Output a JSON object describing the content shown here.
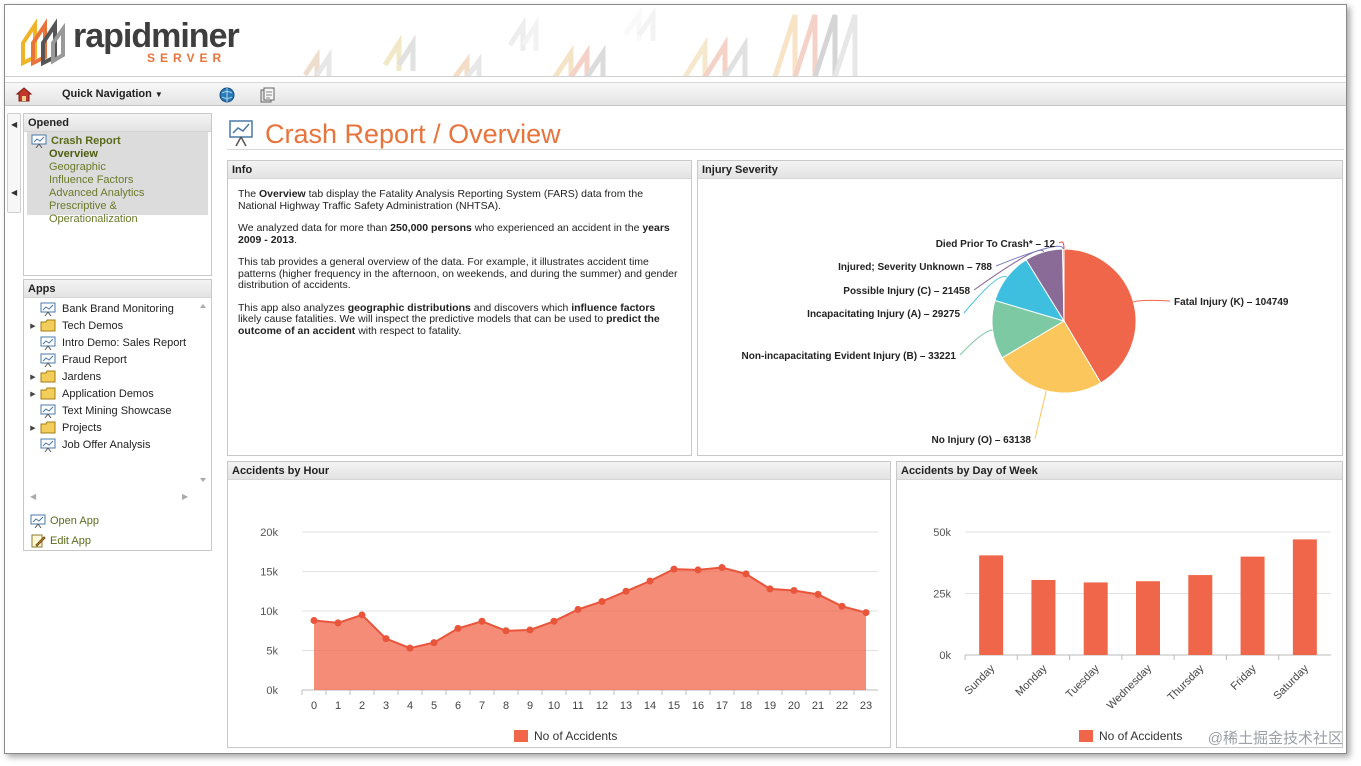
{
  "app": {
    "logo_main": "rapidminer",
    "logo_sub": "SERVER",
    "brand_color": "#e8743b"
  },
  "toolbar": {
    "quick_nav_label": "Quick Navigation"
  },
  "opened": {
    "title": "Opened",
    "item": "Crash Report",
    "tabs": [
      "Overview",
      "Geographic",
      "Influence Factors",
      "Advanced Analytics",
      "Prescriptive & Operationalization"
    ],
    "active_tab": "Overview"
  },
  "apps": {
    "title": "Apps",
    "items": [
      {
        "label": "Bank Brand Monitoring",
        "type": "app"
      },
      {
        "label": "Tech Demos",
        "type": "folder"
      },
      {
        "label": "Intro Demo: Sales Report",
        "type": "app"
      },
      {
        "label": "Fraud Report",
        "type": "app"
      },
      {
        "label": "Jardens",
        "type": "folder"
      },
      {
        "label": "Application Demos",
        "type": "folder"
      },
      {
        "label": "Text Mining Showcase",
        "type": "app"
      },
      {
        "label": "Projects",
        "type": "folder"
      },
      {
        "label": "Job Offer Analysis",
        "type": "app"
      }
    ],
    "open_app": "Open App",
    "edit_app": "Edit App"
  },
  "page": {
    "title": "Crash Report / Overview"
  },
  "info": {
    "title": "Info",
    "p1_a": "The ",
    "p1_b": "Overview",
    "p1_c": " tab display the Fatality Analysis Reporting System (FARS) data from the National Highway Traffic Safety Administration (NHTSA).",
    "p2_a": "We analyzed data for more than ",
    "p2_b": "250,000 persons",
    "p2_c": " who experienced an accident in the ",
    "p2_d": "years 2009 - 2013",
    "p2_e": ".",
    "p3": "This tab provides a general overview of the data.  For example, it illustrates accident time patterns (higher frequency in the afternoon, on weekends, and during the summer) and gender distribution of accidents.",
    "p4_a": "This app also analyzes ",
    "p4_b": "geographic distributions",
    "p4_c": " and discovers which ",
    "p4_d": "influence factors",
    "p4_e": " likely cause fatalities.  We will inspect the predictive models that can be used to ",
    "p4_f": "predict the outcome of an accident",
    "p4_g": " with respect to fatality."
  },
  "chart_data": [
    {
      "type": "pie",
      "title": "Injury Severity",
      "slices": [
        {
          "label": "Fatal Injury (K) – 104749",
          "value": 104749,
          "color": "#f0664a"
        },
        {
          "label": "No Injury (O) – 63138",
          "value": 63138,
          "color": "#fbc65c"
        },
        {
          "label": "Non-incapacitating Evident Injury (B) – 33221",
          "value": 33221,
          "color": "#7cc9a3"
        },
        {
          "label": "Incapacitating Injury (A) – 29275",
          "value": 29275,
          "color": "#3fbfe0"
        },
        {
          "label": "Possible Injury (C) – 21458",
          "value": 21458,
          "color": "#8a6a96"
        },
        {
          "label": "Injured; Severity Unknown – 788",
          "value": 788,
          "color": "#7b7bc0"
        },
        {
          "label": "Died Prior To Crash* – 12",
          "value": 12,
          "color": "#e84c3d"
        }
      ]
    },
    {
      "type": "area",
      "title": "Accidents by Hour",
      "categories": [
        "0",
        "1",
        "2",
        "3",
        "4",
        "5",
        "6",
        "7",
        "8",
        "9",
        "10",
        "11",
        "12",
        "13",
        "14",
        "15",
        "16",
        "17",
        "18",
        "19",
        "20",
        "21",
        "22",
        "23"
      ],
      "values": [
        8800,
        8500,
        9500,
        6500,
        5300,
        6000,
        7800,
        8700,
        7500,
        7600,
        8700,
        10200,
        11200,
        12500,
        13800,
        15300,
        15200,
        15500,
        14700,
        12800,
        12600,
        12100,
        10600,
        9800
      ],
      "ylim": [
        0,
        20000
      ],
      "yticks": [
        "0k",
        "5k",
        "10k",
        "15k",
        "20k"
      ],
      "legend": "No of Accidents",
      "color": "#f0664a"
    },
    {
      "type": "bar",
      "title": "Accidents by Day of Week",
      "categories": [
        "Sunday",
        "Monday",
        "Tuesday",
        "Wednesday",
        "Thursday",
        "Friday",
        "Saturday"
      ],
      "values": [
        40500,
        30500,
        29500,
        30000,
        32500,
        40000,
        47000
      ],
      "ylim": [
        0,
        50000
      ],
      "yticks": [
        "0k",
        "25k",
        "50k"
      ],
      "legend": "No of Accidents",
      "color": "#f0664a"
    }
  ],
  "watermark": "@稀土掘金技术社区"
}
